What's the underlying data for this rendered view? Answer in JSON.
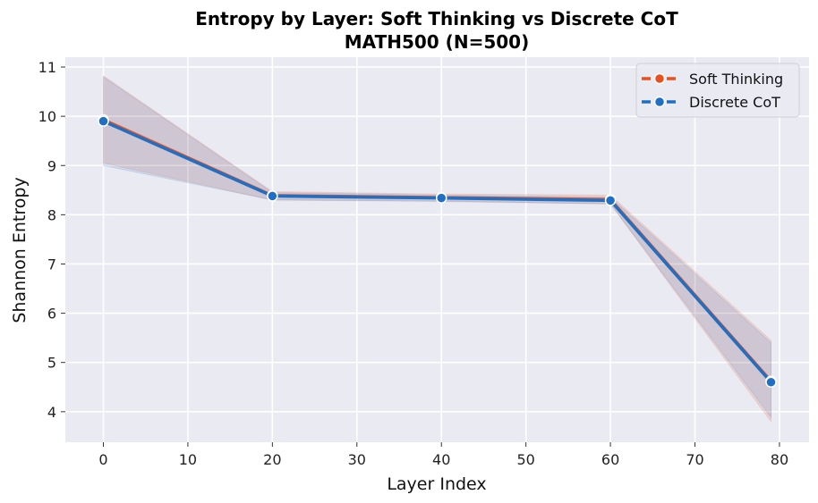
{
  "chart_data": {
    "type": "line",
    "title": "Entropy by Layer: Soft Thinking vs Discrete CoT",
    "subtitle": "MATH500 (N=500)",
    "xlabel": "Layer Index",
    "ylabel": "Shannon Entropy",
    "xlim": [
      -4.5,
      83.5
    ],
    "ylim": [
      3.38,
      11.2
    ],
    "xticks": [
      0,
      10,
      20,
      30,
      40,
      50,
      60,
      70,
      80
    ],
    "yticks": [
      4,
      5,
      6,
      7,
      8,
      9,
      10,
      11
    ],
    "grid": true,
    "legend_position": "top-right",
    "series": [
      {
        "name": "Soft Thinking",
        "color": "#e8501e",
        "x": [
          0,
          20,
          40,
          60,
          79
        ],
        "y": [
          9.93,
          8.39,
          8.35,
          8.31,
          4.62
        ],
        "ci_low": [
          9.05,
          8.3,
          8.28,
          8.22,
          3.8
        ],
        "ci_high": [
          10.82,
          8.47,
          8.42,
          8.4,
          5.45
        ]
      },
      {
        "name": "Discrete CoT",
        "color": "#1f6fc5",
        "x": [
          0,
          20,
          40,
          60,
          79
        ],
        "y": [
          9.9,
          8.38,
          8.34,
          8.29,
          4.6
        ],
        "ci_low": [
          9.0,
          8.3,
          8.27,
          8.22,
          3.88
        ],
        "ci_high": [
          10.8,
          8.45,
          8.4,
          8.36,
          5.4
        ]
      }
    ]
  }
}
